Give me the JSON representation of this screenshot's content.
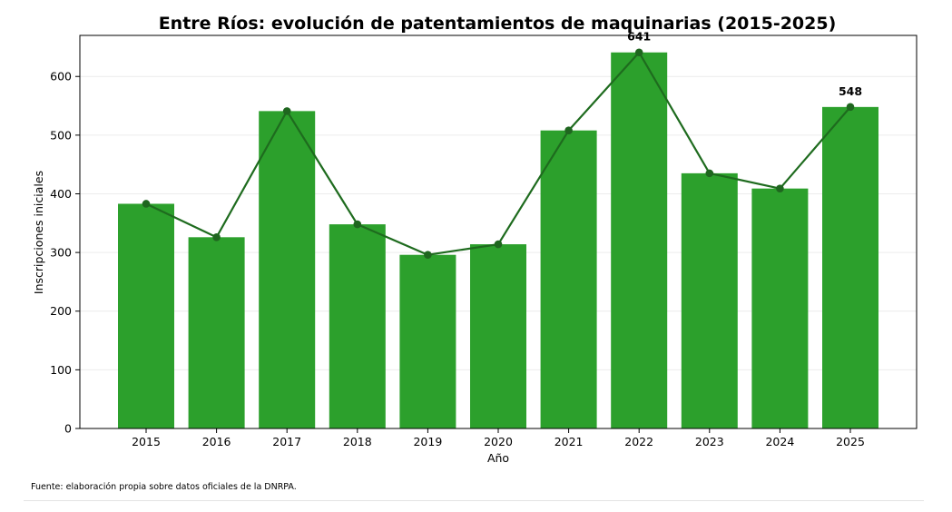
{
  "chart_data": {
    "type": "bar",
    "title": "Entre Ríos: evolución de patentamientos de maquinarias (2015-2025)",
    "xlabel": "Año",
    "ylabel": "Inscripciones iniciales",
    "categories": [
      "2015",
      "2016",
      "2017",
      "2018",
      "2019",
      "2020",
      "2021",
      "2022",
      "2023",
      "2024",
      "2025"
    ],
    "values": [
      383,
      326,
      541,
      348,
      296,
      314,
      508,
      641,
      435,
      409,
      548
    ],
    "line_overlay": true,
    "ylim": [
      0,
      670
    ],
    "yticks": [
      0,
      100,
      200,
      300,
      400,
      500,
      600
    ],
    "grid": "horizontal",
    "data_labels": [
      {
        "category": "2022",
        "text": "641"
      },
      {
        "category": "2025",
        "text": "548"
      }
    ],
    "colors": {
      "bar": "#2ca02c",
      "line": "#1e6b1e",
      "marker": "#1f661f",
      "grid": "#ececec"
    }
  },
  "footer": {
    "source": "Fuente: elaboración propia sobre datos oficiales de la DNRPA."
  }
}
